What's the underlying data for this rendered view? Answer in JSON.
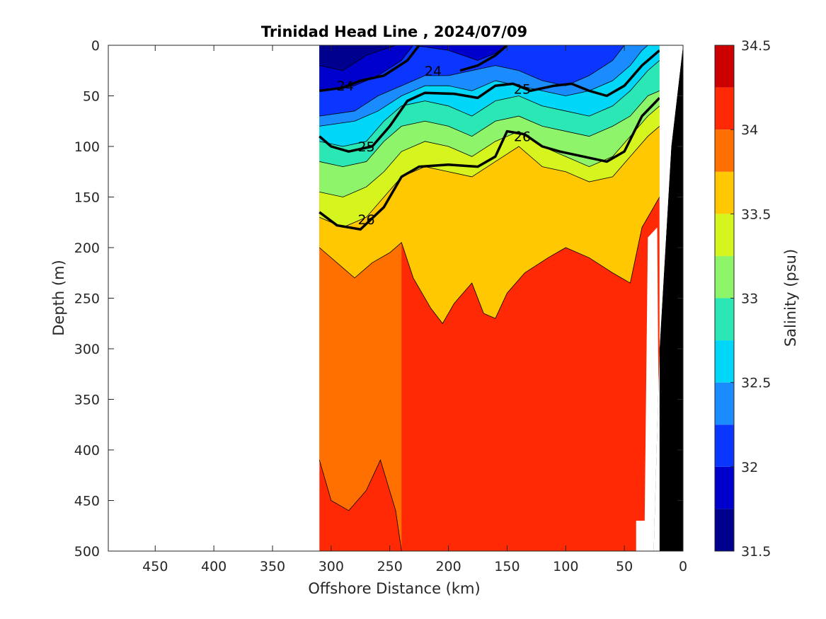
{
  "chart_data": {
    "type": "heatmap",
    "title": "Trinidad Head Line , 2024/07/09",
    "xlabel": "Offshore Distance (km)",
    "ylabel": "Depth (m)",
    "colorbar_label": "Salinity (psu)",
    "xlim": [
      490,
      0
    ],
    "x_reversed": true,
    "ylim": [
      0,
      500
    ],
    "y_reversed": true,
    "x_ticks": [
      450,
      400,
      350,
      300,
      250,
      200,
      150,
      100,
      50,
      0
    ],
    "x_tick_labels": [
      "450",
      "400",
      "350",
      "300",
      "250",
      "200",
      "150",
      "100",
      "50",
      "0"
    ],
    "y_ticks": [
      0,
      50,
      100,
      150,
      200,
      250,
      300,
      350,
      400,
      450,
      500
    ],
    "y_tick_labels": [
      "0",
      "50",
      "100",
      "150",
      "200",
      "250",
      "300",
      "350",
      "400",
      "450",
      "500"
    ],
    "colorbar": {
      "range": [
        31.5,
        34.5
      ],
      "ticks": [
        31.5,
        32,
        32.5,
        33,
        33.5,
        34,
        34.5
      ],
      "tick_labels": [
        "31.5",
        "32",
        "32.5",
        "33",
        "33.5",
        "34",
        "34.5"
      ],
      "levels": [
        {
          "from": 31.5,
          "to": 31.75,
          "color": "#00008f"
        },
        {
          "from": 31.75,
          "to": 32.0,
          "color": "#0000cc"
        },
        {
          "from": 32.0,
          "to": 32.25,
          "color": "#0a36ff"
        },
        {
          "from": 32.25,
          "to": 32.5,
          "color": "#1a8cff"
        },
        {
          "from": 32.5,
          "to": 32.75,
          "color": "#00d6f7"
        },
        {
          "from": 32.75,
          "to": 33.0,
          "color": "#2be6b5"
        },
        {
          "from": 33.0,
          "to": 33.25,
          "color": "#8ef56b"
        },
        {
          "from": 33.25,
          "to": 33.5,
          "color": "#d6f51f"
        },
        {
          "from": 33.5,
          "to": 33.75,
          "color": "#ffc800"
        },
        {
          "from": 33.75,
          "to": 34.0,
          "color": "#ff7000"
        },
        {
          "from": 34.0,
          "to": 34.25,
          "color": "#ff2a05"
        },
        {
          "from": 34.25,
          "to": 34.5,
          "color": "#cc0000"
        }
      ]
    },
    "data_x_range_km": [
      310,
      20
    ],
    "salinity_bands": [
      {
        "salinity": 31.75,
        "color": "#00008f",
        "boundary_depths": [
          [
            310,
            20
          ],
          [
            290,
            25
          ],
          [
            270,
            10
          ],
          [
            245,
            0
          ]
        ]
      },
      {
        "salinity": 32.0,
        "color": "#0000cc",
        "boundary_depths": [
          [
            310,
            45
          ],
          [
            280,
            40
          ],
          [
            260,
            30
          ],
          [
            240,
            15
          ],
          [
            230,
            0
          ],
          [
            200,
            5
          ],
          [
            175,
            15
          ],
          [
            160,
            8
          ],
          [
            150,
            0
          ]
        ]
      },
      {
        "salinity": 32.25,
        "color": "#0a36ff",
        "boundary_depths": [
          [
            310,
            70
          ],
          [
            280,
            65
          ],
          [
            260,
            50
          ],
          [
            240,
            40
          ],
          [
            220,
            30
          ],
          [
            200,
            30
          ],
          [
            180,
            25
          ],
          [
            160,
            20
          ],
          [
            140,
            25
          ],
          [
            120,
            35
          ],
          [
            100,
            40
          ],
          [
            80,
            30
          ],
          [
            60,
            15
          ],
          [
            50,
            0
          ]
        ]
      },
      {
        "salinity": 32.5,
        "color": "#1a8cff",
        "boundary_depths": [
          [
            310,
            80
          ],
          [
            280,
            75
          ],
          [
            260,
            65
          ],
          [
            240,
            50
          ],
          [
            220,
            40
          ],
          [
            200,
            40
          ],
          [
            180,
            45
          ],
          [
            160,
            35
          ],
          [
            140,
            40
          ],
          [
            120,
            45
          ],
          [
            100,
            50
          ],
          [
            80,
            45
          ],
          [
            60,
            35
          ],
          [
            45,
            20
          ],
          [
            35,
            5
          ],
          [
            30,
            0
          ]
        ]
      },
      {
        "salinity": 32.75,
        "color": "#00d6f7",
        "boundary_depths": [
          [
            310,
            95
          ],
          [
            290,
            100
          ],
          [
            270,
            95
          ],
          [
            255,
            75
          ],
          [
            240,
            60
          ],
          [
            220,
            55
          ],
          [
            200,
            60
          ],
          [
            180,
            70
          ],
          [
            160,
            55
          ],
          [
            140,
            50
          ],
          [
            120,
            60
          ],
          [
            100,
            65
          ],
          [
            80,
            70
          ],
          [
            60,
            60
          ],
          [
            45,
            45
          ],
          [
            30,
            25
          ],
          [
            20,
            15
          ]
        ]
      },
      {
        "salinity": 33.0,
        "color": "#2be6b5",
        "boundary_depths": [
          [
            310,
            115
          ],
          [
            290,
            120
          ],
          [
            270,
            115
          ],
          [
            255,
            95
          ],
          [
            240,
            80
          ],
          [
            220,
            75
          ],
          [
            200,
            80
          ],
          [
            180,
            90
          ],
          [
            160,
            75
          ],
          [
            140,
            70
          ],
          [
            120,
            80
          ],
          [
            100,
            85
          ],
          [
            80,
            90
          ],
          [
            60,
            80
          ],
          [
            45,
            70
          ],
          [
            30,
            50
          ],
          [
            20,
            45
          ]
        ]
      },
      {
        "salinity": 33.25,
        "color": "#8ef56b",
        "boundary_depths": [
          [
            310,
            145
          ],
          [
            290,
            150
          ],
          [
            270,
            140
          ],
          [
            255,
            125
          ],
          [
            240,
            105
          ],
          [
            220,
            95
          ],
          [
            200,
            100
          ],
          [
            180,
            110
          ],
          [
            160,
            95
          ],
          [
            140,
            85
          ],
          [
            120,
            100
          ],
          [
            100,
            110
          ],
          [
            80,
            120
          ],
          [
            60,
            110
          ],
          [
            45,
            90
          ],
          [
            30,
            70
          ],
          [
            20,
            60
          ]
        ]
      },
      {
        "salinity": 33.5,
        "color": "#d6f51f",
        "boundary_depths": [
          [
            310,
            170
          ],
          [
            290,
            180
          ],
          [
            270,
            170
          ],
          [
            255,
            150
          ],
          [
            240,
            130
          ],
          [
            220,
            120
          ],
          [
            200,
            125
          ],
          [
            180,
            130
          ],
          [
            160,
            115
          ],
          [
            140,
            100
          ],
          [
            120,
            120
          ],
          [
            100,
            125
          ],
          [
            80,
            135
          ],
          [
            60,
            130
          ],
          [
            45,
            110
          ],
          [
            30,
            90
          ],
          [
            20,
            80
          ]
        ]
      },
      {
        "salinity": 33.75,
        "color": "#ffc800",
        "boundary_depths": [
          [
            310,
            200
          ],
          [
            295,
            215
          ],
          [
            280,
            230
          ],
          [
            265,
            215
          ],
          [
            250,
            205
          ],
          [
            240,
            195
          ],
          [
            230,
            230
          ],
          [
            215,
            260
          ],
          [
            205,
            275
          ],
          [
            195,
            255
          ],
          [
            180,
            235
          ],
          [
            170,
            265
          ],
          [
            160,
            270
          ],
          [
            150,
            245
          ],
          [
            135,
            225
          ],
          [
            115,
            210
          ],
          [
            100,
            200
          ],
          [
            80,
            210
          ],
          [
            60,
            225
          ],
          [
            45,
            235
          ],
          [
            35,
            180
          ],
          [
            25,
            160
          ],
          [
            20,
            150
          ]
        ]
      },
      {
        "salinity": 34.0,
        "color": "#ff7000",
        "boundary_depths": [
          [
            310,
            410
          ],
          [
            300,
            450
          ],
          [
            285,
            460
          ],
          [
            270,
            440
          ],
          [
            258,
            410
          ],
          [
            245,
            460
          ],
          [
            240,
            500
          ]
        ]
      },
      {
        "salinity": 34.25,
        "color": "#ff2a05",
        "boundary_depths": []
      }
    ],
    "density_contours": [
      {
        "label": "24",
        "points": [
          [
            310,
            45
          ],
          [
            290,
            42
          ],
          [
            275,
            35
          ],
          [
            255,
            30
          ],
          [
            235,
            15
          ],
          [
            225,
            0
          ]
        ]
      },
      {
        "label": "24",
        "points": [
          [
            190,
            25
          ],
          [
            175,
            20
          ],
          [
            160,
            10
          ],
          [
            150,
            0
          ]
        ]
      },
      {
        "label": "25",
        "points": [
          [
            310,
            90
          ],
          [
            300,
            100
          ],
          [
            285,
            105
          ],
          [
            265,
            100
          ],
          [
            250,
            80
          ],
          [
            235,
            55
          ],
          [
            220,
            47
          ],
          [
            195,
            48
          ],
          [
            175,
            52
          ],
          [
            160,
            40
          ],
          [
            145,
            38
          ],
          [
            130,
            45
          ],
          [
            110,
            40
          ],
          [
            95,
            38
          ],
          [
            80,
            45
          ],
          [
            65,
            50
          ],
          [
            50,
            40
          ],
          [
            35,
            20
          ],
          [
            20,
            5
          ]
        ]
      },
      {
        "label": "26",
        "points": [
          [
            310,
            165
          ],
          [
            295,
            178
          ],
          [
            275,
            182
          ],
          [
            255,
            160
          ],
          [
            240,
            130
          ],
          [
            225,
            120
          ],
          [
            200,
            118
          ],
          [
            175,
            120
          ],
          [
            160,
            110
          ],
          [
            150,
            85
          ],
          [
            135,
            88
          ],
          [
            120,
            100
          ],
          [
            105,
            105
          ],
          [
            85,
            110
          ],
          [
            65,
            115
          ],
          [
            50,
            105
          ],
          [
            35,
            70
          ],
          [
            20,
            52
          ]
        ]
      }
    ],
    "contour_label_positions": [
      {
        "label": "24",
        "x": 288,
        "y": 40
      },
      {
        "label": "24",
        "x": 213,
        "y": 25
      },
      {
        "label": "25",
        "x": 137,
        "y": 43
      },
      {
        "label": "25",
        "x": 270,
        "y": 100
      },
      {
        "label": "26",
        "x": 137,
        "y": 90
      },
      {
        "label": "26",
        "x": 270,
        "y": 172
      }
    ],
    "seafloor": {
      "color": "#000000",
      "points": [
        [
          25,
          500
        ],
        [
          20,
          300
        ],
        [
          10,
          100
        ],
        [
          5,
          50
        ],
        [
          0,
          0
        ]
      ]
    },
    "grid": false
  }
}
